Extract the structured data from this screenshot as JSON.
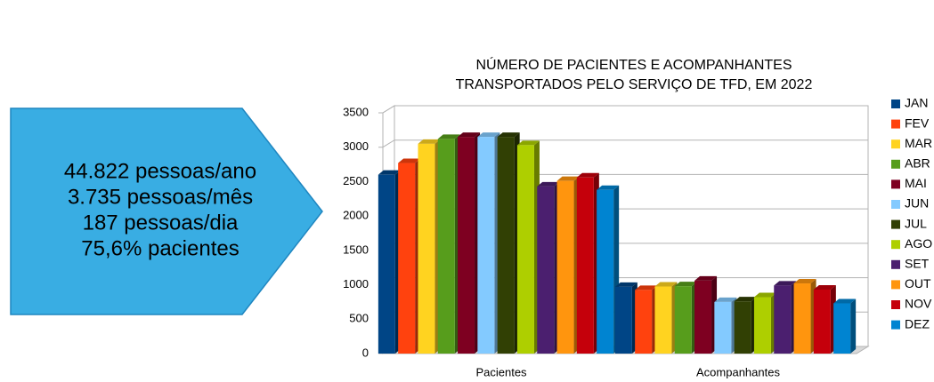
{
  "callout": [
    "44.822 pessoas/ano",
    "3.735 pessoas/mês",
    "187 pessoas/dia",
    "75,6% pacientes"
  ],
  "chart_data": {
    "type": "bar3d",
    "title": [
      "NÚMERO DE PACIENTES E ACOMPANHANTES",
      "TRANSPORTADOS PELO SERVIÇO DE TFD, EM 2022"
    ],
    "categories": [
      "Pacientes",
      "Acompanhantes"
    ],
    "series": [
      {
        "name": "JAN",
        "color": "#004586",
        "values": [
          2600,
          970
        ]
      },
      {
        "name": "FEV",
        "color": "#ff420e",
        "values": [
          2770,
          925
        ]
      },
      {
        "name": "MAR",
        "color": "#ffd320",
        "values": [
          3050,
          975
        ]
      },
      {
        "name": "ABR",
        "color": "#579d1c",
        "values": [
          3120,
          980
        ]
      },
      {
        "name": "MAI",
        "color": "#7e0021",
        "values": [
          3150,
          1060
        ]
      },
      {
        "name": "JUN",
        "color": "#83caff",
        "values": [
          3150,
          750
        ]
      },
      {
        "name": "JUL",
        "color": "#314004",
        "values": [
          3150,
          760
        ]
      },
      {
        "name": "AGO",
        "color": "#aecf00",
        "values": [
          3030,
          820
        ]
      },
      {
        "name": "SET",
        "color": "#4b1f6f",
        "values": [
          2430,
          990
        ]
      },
      {
        "name": "OUT",
        "color": "#ff950e",
        "values": [
          2510,
          1020
        ]
      },
      {
        "name": "NOV",
        "color": "#c5000b",
        "values": [
          2560,
          930
        ]
      },
      {
        "name": "DEZ",
        "color": "#0084d1",
        "values": [
          2380,
          730
        ]
      }
    ],
    "ylim": [
      0,
      3500
    ],
    "yticks": [
      0,
      500,
      1000,
      1500,
      2000,
      2500,
      3000,
      3500
    ],
    "grid": true,
    "legend": "right"
  }
}
